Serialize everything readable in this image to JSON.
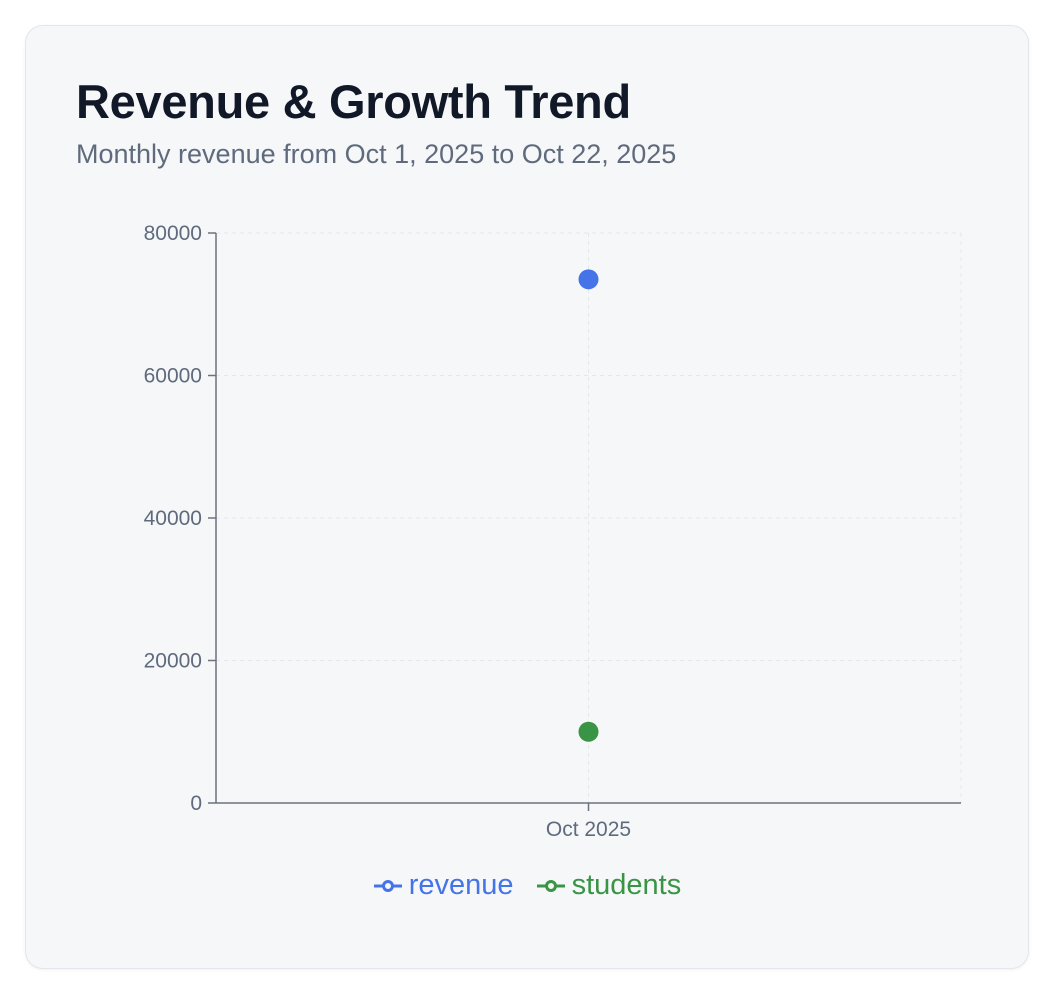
{
  "header": {
    "title": "Revenue & Growth Trend",
    "subtitle": "Monthly revenue from Oct 1, 2025 to Oct 22, 2025"
  },
  "chart_data": {
    "type": "scatter",
    "categories": [
      "Oct 2025"
    ],
    "series": [
      {
        "name": "revenue",
        "values": [
          73500
        ],
        "color": "#4573e8"
      },
      {
        "name": "students",
        "values": [
          10000
        ],
        "color": "#3a9445"
      }
    ],
    "ylim": [
      0,
      80000
    ],
    "yticks": [
      "0",
      "20000",
      "40000",
      "60000",
      "80000"
    ],
    "grid": true,
    "grid_style": "dashed",
    "legend": "bottom-center",
    "title": "Revenue & Growth Trend",
    "subtitle": "Monthly revenue from Oct 1, 2025 to Oct 22, 2025",
    "xlabel": "",
    "ylabel": ""
  },
  "legend": {
    "items": [
      {
        "label": "revenue",
        "color": "#4573e8"
      },
      {
        "label": "students",
        "color": "#3a9445"
      }
    ]
  }
}
